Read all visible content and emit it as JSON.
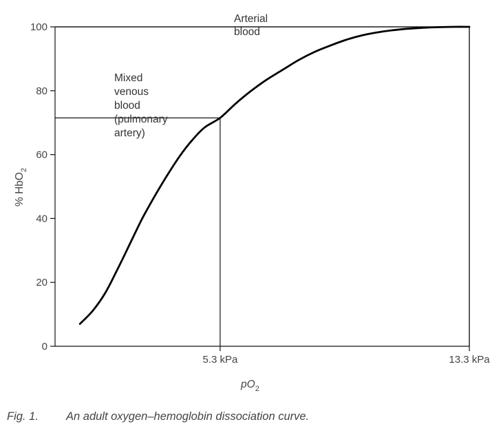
{
  "chart_data": {
    "type": "line",
    "title": "",
    "ylabel": "% HbO",
    "ylabel_sub": "2",
    "xlabel": "pO",
    "xlabel_sub": "2",
    "ylim": [
      0,
      100
    ],
    "yticks": [
      0,
      20,
      40,
      60,
      80,
      100
    ],
    "xlim": [
      0,
      13.3
    ],
    "xticks": [
      {
        "value": 5.3,
        "label": "5.3 kPa"
      },
      {
        "value": 13.3,
        "label": "13.3 kPa"
      }
    ],
    "series": [
      {
        "name": "oxygen-hemoglobin dissociation curve",
        "x": [
          0.8,
          1.2,
          1.6,
          2.0,
          2.4,
          2.8,
          3.2,
          3.6,
          4.0,
          4.4,
          4.8,
          5.3,
          5.8,
          6.3,
          6.8,
          7.3,
          7.8,
          8.3,
          8.8,
          9.3,
          9.8,
          10.3,
          10.8,
          11.3,
          11.8,
          12.3,
          12.8,
          13.3
        ],
        "y": [
          7,
          11,
          16.5,
          24,
          32,
          40,
          47,
          53.5,
          59.5,
          64.5,
          68.5,
          71.5,
          76,
          80,
          83.5,
          86.5,
          89.5,
          92,
          94,
          95.8,
          97.2,
          98.2,
          98.9,
          99.4,
          99.7,
          99.9,
          100,
          100
        ]
      }
    ],
    "reference_lines": [
      {
        "name": "venous",
        "x": 5.3,
        "y": 71.5
      },
      {
        "name": "arterial",
        "x": 13.3,
        "y": 100
      }
    ],
    "annotations": {
      "arterial": [
        "Arterial",
        "blood"
      ],
      "venous": [
        "Mixed",
        "venous",
        "blood",
        "(pulmonary",
        "artery)"
      ]
    }
  },
  "caption": {
    "number": "Fig. 1.",
    "text": "An adult oxygen–hemoglobin dissociation curve."
  }
}
